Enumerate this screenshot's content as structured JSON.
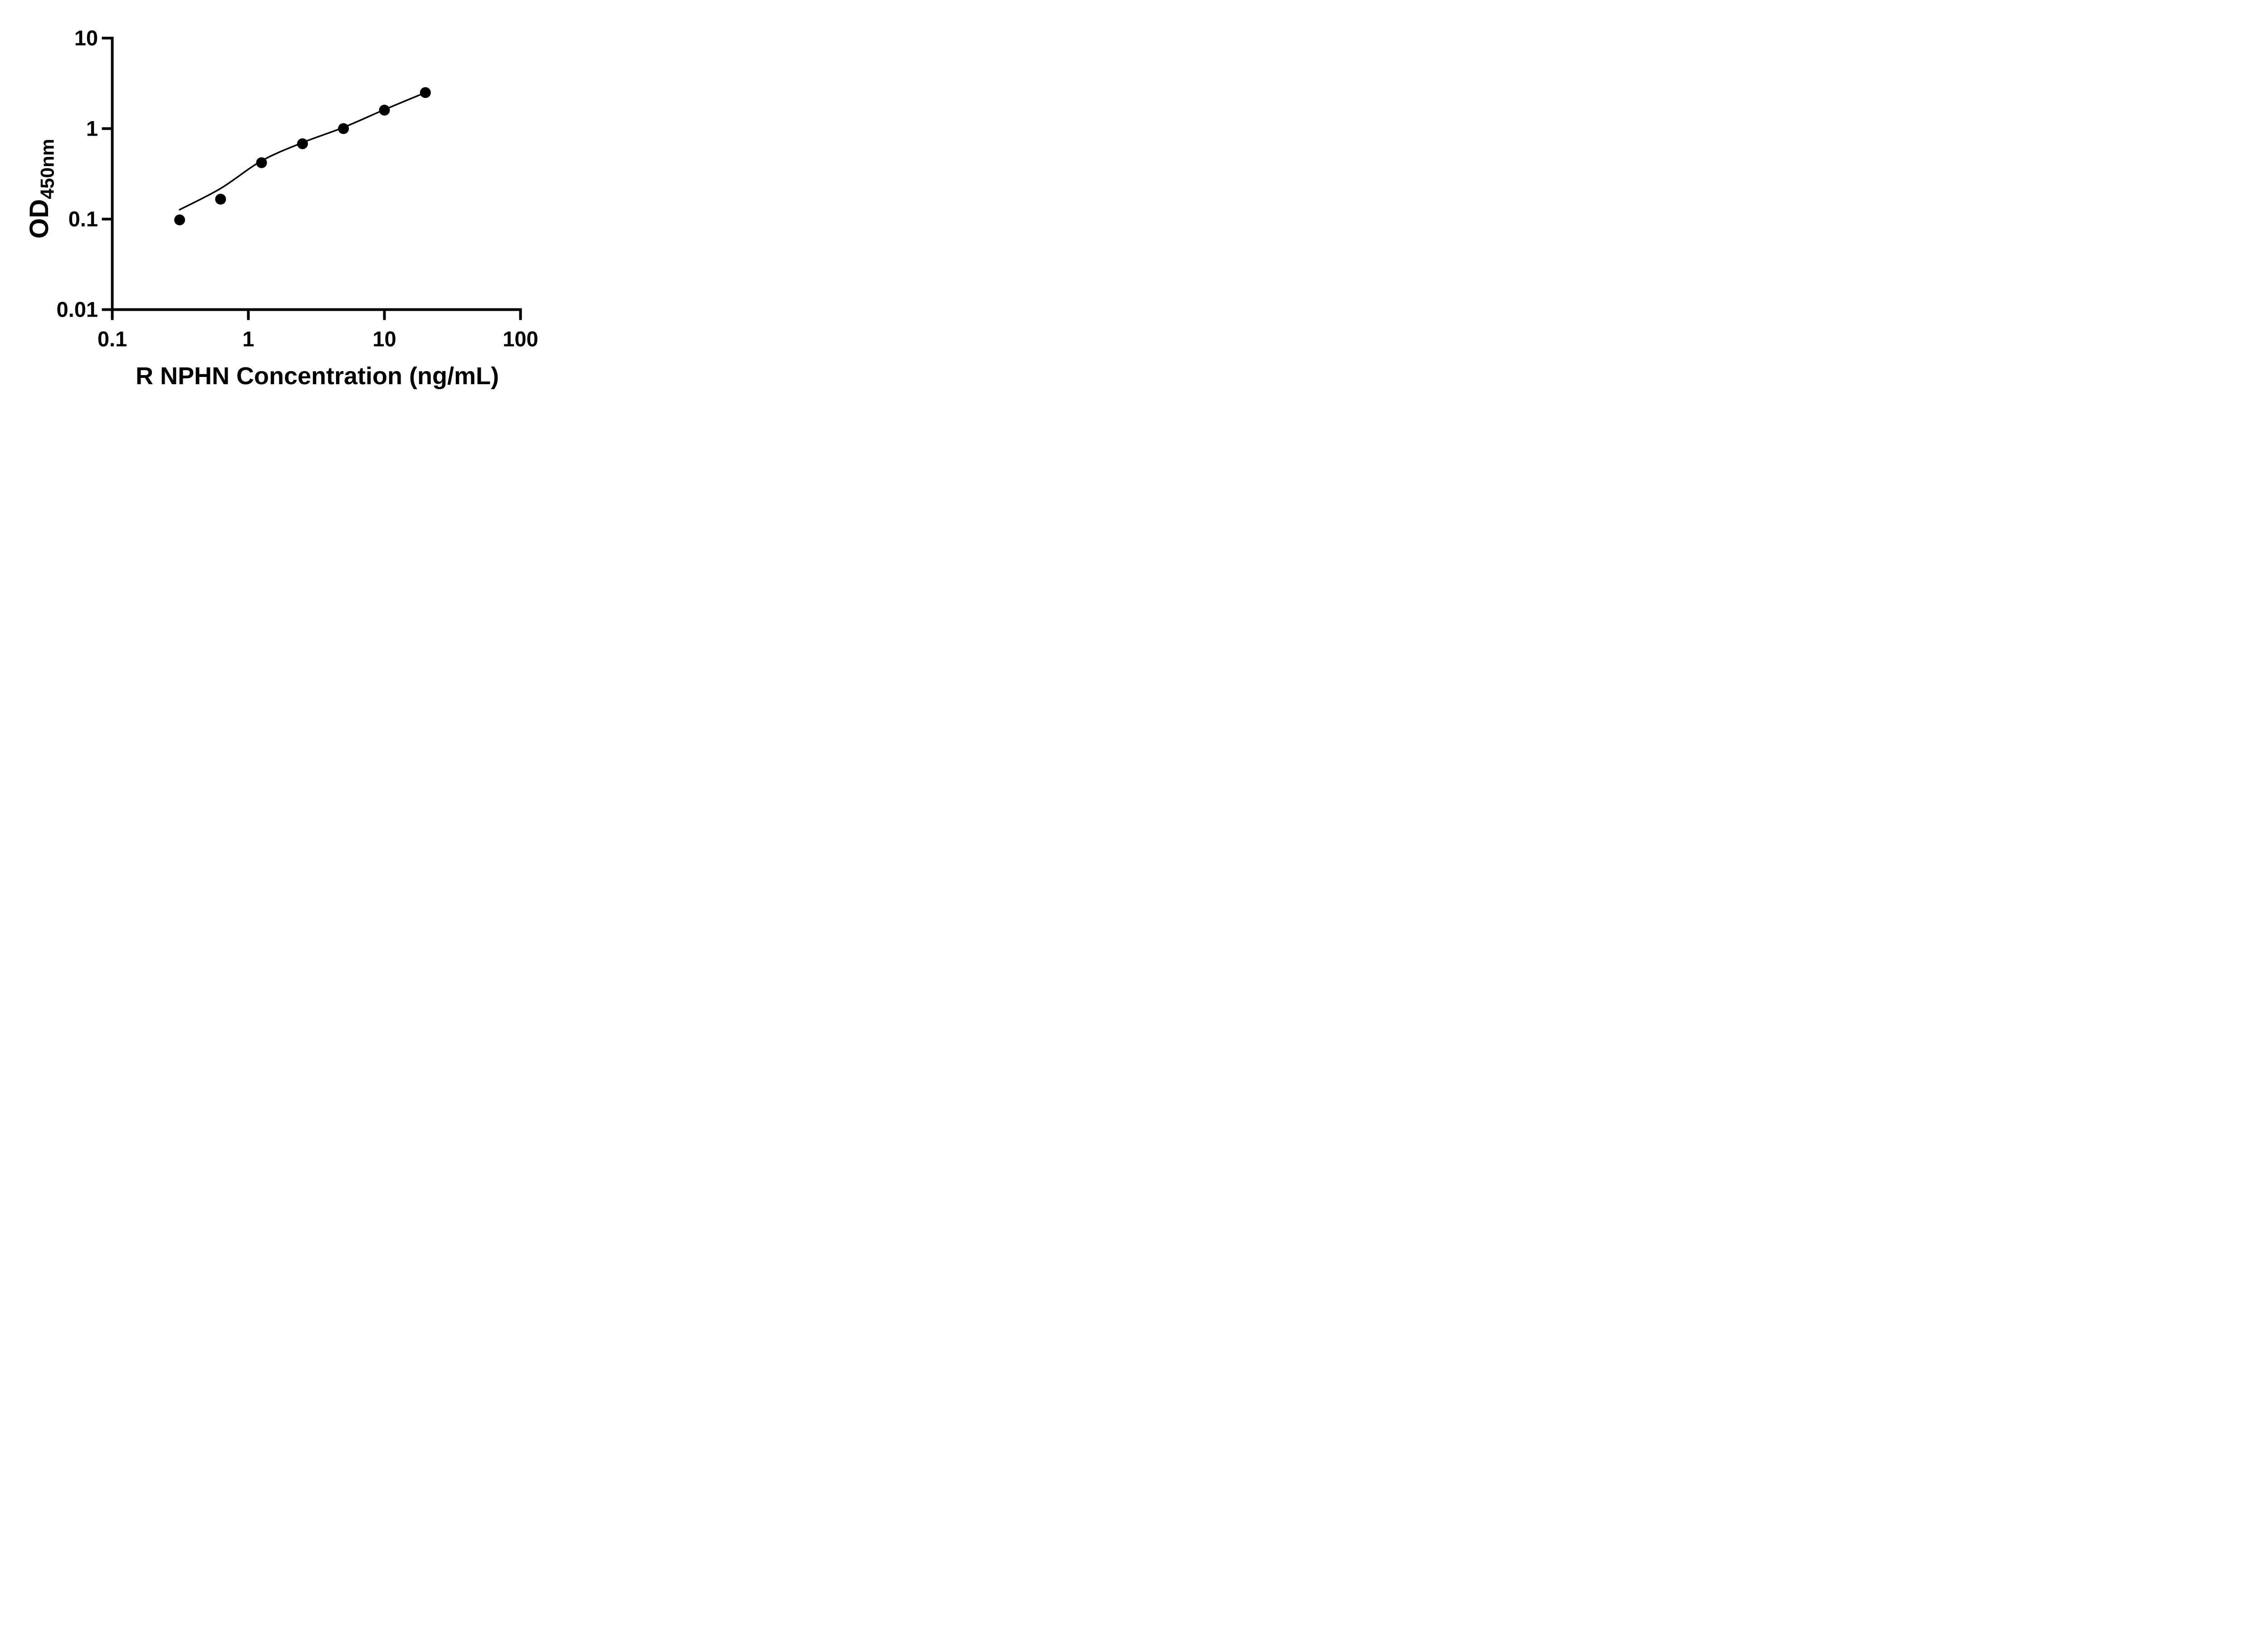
{
  "page": {
    "background_color": "#ffffff"
  },
  "chart_data": {
    "type": "scatter",
    "title": "",
    "xlabel": "R NPHN Concentration (ng/mL)",
    "ylabel_main": "OD",
    "ylabel_sub": "450nm",
    "x_scale": "log10",
    "y_scale": "log10",
    "xlim": [
      0.1,
      100
    ],
    "ylim": [
      0.01,
      10
    ],
    "grid": false,
    "legend_position": "none",
    "axis_color": "#000000",
    "marker_color": "#000000",
    "line_color": "#000000",
    "x_ticks": [
      {
        "value": 0.1,
        "label": "0.1"
      },
      {
        "value": 1,
        "label": "1"
      },
      {
        "value": 10,
        "label": "10"
      },
      {
        "value": 100,
        "label": "100"
      }
    ],
    "y_ticks": [
      {
        "value": 0.01,
        "label": "0.01"
      },
      {
        "value": 0.1,
        "label": "0.1"
      },
      {
        "value": 1,
        "label": "1"
      },
      {
        "value": 10,
        "label": "10"
      }
    ],
    "points": [
      {
        "x": 0.3125,
        "y": 0.098
      },
      {
        "x": 0.625,
        "y": 0.166
      },
      {
        "x": 1.25,
        "y": 0.42
      },
      {
        "x": 2.5,
        "y": 0.68
      },
      {
        "x": 5,
        "y": 1.0
      },
      {
        "x": 10,
        "y": 1.6
      },
      {
        "x": 20,
        "y": 2.5
      }
    ],
    "fit_line": [
      {
        "x": 0.3125,
        "y": 0.127
      },
      {
        "x": 0.625,
        "y": 0.218
      },
      {
        "x": 1.25,
        "y": 0.44
      },
      {
        "x": 2.5,
        "y": 0.7
      },
      {
        "x": 5,
        "y": 1.03
      },
      {
        "x": 10,
        "y": 1.62
      },
      {
        "x": 20,
        "y": 2.5
      }
    ]
  }
}
